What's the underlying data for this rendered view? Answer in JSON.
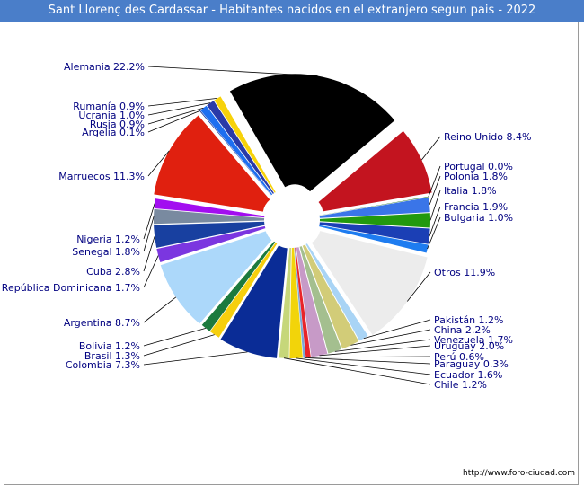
{
  "title": "Sant Llorenç des Cardassar - Habitantes nacidos en el extranjero segun pais - 2022",
  "source": "http://www.foro-ciudad.com",
  "chart_data": {
    "type": "pie",
    "title": "Sant Llorenç des Cardassar - Habitantes nacidos en el extranjero segun pais - 2022",
    "unit": "%",
    "slices": [
      {
        "name": "Reino Unido",
        "label": "Reino Unido 8.4%",
        "value": 8.4,
        "color": "#c3141f"
      },
      {
        "name": "Portugal",
        "label": "Portugal 0.0%",
        "value": 0.0,
        "color": "#006400"
      },
      {
        "name": "Polonia",
        "label": "Polonia 1.8%",
        "value": 1.8,
        "color": "#3a75e8"
      },
      {
        "name": "Italia",
        "label": "Italia 1.8%",
        "value": 1.8,
        "color": "#22990e"
      },
      {
        "name": "Francia",
        "label": "Francia 1.9%",
        "value": 1.9,
        "color": "#1b3fb5"
      },
      {
        "name": "Bulgaria",
        "label": "Bulgaria 1.0%",
        "value": 1.0,
        "color": "#1e7cf0"
      },
      {
        "name": "Otros",
        "label": "Otros 11.9%",
        "value": 11.9,
        "color": "#ececec"
      },
      {
        "name": "Pakistán",
        "label": "Pakistán 1.2%",
        "value": 1.2,
        "color": "#a9d4f5"
      },
      {
        "name": "China",
        "label": "China 2.2%",
        "value": 2.2,
        "color": "#d2cc78"
      },
      {
        "name": "Venezuela",
        "label": "Venezuela 1.7%",
        "value": 1.7,
        "color": "#a4bf8f"
      },
      {
        "name": "Uruguay",
        "label": "Uruguay 2.0%",
        "value": 2.0,
        "color": "#c79ac7"
      },
      {
        "name": "Perú",
        "label": "Perú 0.6%",
        "value": 0.6,
        "color": "#e8242a"
      },
      {
        "name": "Paraguay",
        "label": "Paraguay 0.3%",
        "value": 0.3,
        "color": "#7ba7d6"
      },
      {
        "name": "Ecuador",
        "label": "Ecuador 1.6%",
        "value": 1.6,
        "color": "#f2d40a"
      },
      {
        "name": "Chile",
        "label": "Chile 1.2%",
        "value": 1.2,
        "color": "#c6d77a"
      },
      {
        "name": "Colombia",
        "label": "Colombia 7.3%",
        "value": 7.3,
        "color": "#0a2c96"
      },
      {
        "name": "Brasil",
        "label": "Brasil 1.3%",
        "value": 1.3,
        "color": "#f6cf0e"
      },
      {
        "name": "Bolivia",
        "label": "Bolivia 1.2%",
        "value": 1.2,
        "color": "#1c7a3e"
      },
      {
        "name": "Argentina",
        "label": "Argentina 8.7%",
        "value": 8.7,
        "color": "#acd8fa"
      },
      {
        "name": "República Dominicana",
        "label": "República Dominicana 1.7%",
        "value": 1.7,
        "color": "#7b36e0"
      },
      {
        "name": "Cuba",
        "label": "Cuba 2.8%",
        "value": 2.8,
        "color": "#1840a0"
      },
      {
        "name": "Senegal",
        "label": "Senegal 1.8%",
        "value": 1.8,
        "color": "#798aa0"
      },
      {
        "name": "Nigeria",
        "label": "Nigeria 1.2%",
        "value": 1.2,
        "color": "#a20ef0"
      },
      {
        "name": "Marruecos",
        "label": "Marruecos 11.3%",
        "value": 11.3,
        "color": "#e0200f"
      },
      {
        "name": "Argelia",
        "label": "Argelia 0.1%",
        "value": 0.1,
        "color": "#1a3aa0"
      },
      {
        "name": "Rusia",
        "label": "Rusia 0.9%",
        "value": 0.9,
        "color": "#1e6ff0"
      },
      {
        "name": "Ucrania",
        "label": "Ucrania 1.0%",
        "value": 1.0,
        "color": "#2a3aa8"
      },
      {
        "name": "Rumanía",
        "label": "Rumanía 0.9%",
        "value": 0.9,
        "color": "#f7d20a"
      },
      {
        "name": "Alemania",
        "label": "Alemania 22.2%",
        "value": 22.2,
        "color": "#000000"
      }
    ]
  }
}
